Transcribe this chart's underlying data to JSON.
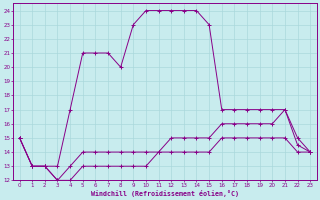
{
  "xlabel": "Windchill (Refroidissement éolien,°C)",
  "xlim": [
    -0.5,
    23.5
  ],
  "ylim": [
    12,
    24.5
  ],
  "yticks": [
    12,
    13,
    14,
    15,
    16,
    17,
    18,
    19,
    20,
    21,
    22,
    23,
    24
  ],
  "xticks": [
    0,
    1,
    2,
    3,
    4,
    5,
    6,
    7,
    8,
    9,
    10,
    11,
    12,
    13,
    14,
    15,
    16,
    17,
    18,
    19,
    20,
    21,
    22,
    23
  ],
  "background_color": "#c8ecee",
  "grid_color": "#aad8dc",
  "line_color": "#880088",
  "line1_x": [
    0,
    1,
    2,
    3,
    4,
    5,
    6,
    7,
    8,
    9,
    10,
    11,
    12,
    13,
    14,
    15,
    16,
    17,
    18,
    19,
    20,
    21,
    22,
    23
  ],
  "line1_y": [
    15,
    13,
    13,
    12,
    12,
    13,
    13,
    13,
    13,
    13,
    13,
    14,
    14,
    14,
    14,
    14,
    15,
    15,
    15,
    15,
    15,
    15,
    14,
    14
  ],
  "line2_x": [
    0,
    1,
    2,
    3,
    4,
    5,
    6,
    7,
    8,
    9,
    10,
    11,
    12,
    13,
    14,
    15,
    16,
    17,
    18,
    19,
    20,
    21,
    22,
    23
  ],
  "line2_y": [
    15,
    13,
    13,
    12,
    13,
    14,
    14,
    14,
    14,
    14,
    14,
    14,
    15,
    15,
    15,
    15,
    16,
    16,
    16,
    16,
    16,
    17,
    15,
    14
  ],
  "line3_x": [
    0,
    1,
    2,
    3,
    4,
    5,
    6,
    7,
    8,
    9,
    10,
    11,
    12,
    13,
    14,
    15,
    16,
    17,
    18,
    19,
    20,
    21,
    22,
    23
  ],
  "line3_y": [
    15,
    13,
    13,
    13,
    17,
    21,
    21,
    21,
    20,
    23,
    24,
    24,
    24,
    24,
    24,
    23,
    17,
    17,
    17,
    17,
    17,
    17,
    14.5,
    14
  ]
}
